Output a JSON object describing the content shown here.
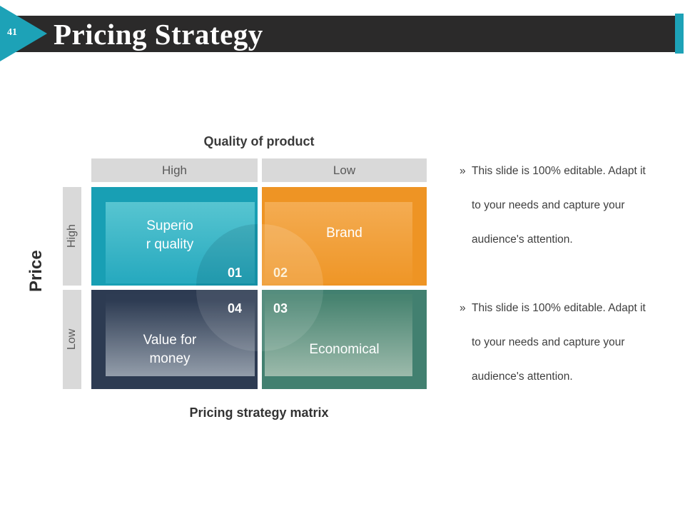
{
  "header": {
    "page_number": "41",
    "title": "Pricing Strategy"
  },
  "matrix": {
    "x_axis_title": "Quality of product",
    "y_axis_title": "Price",
    "caption": "Pricing strategy matrix",
    "column_headers": [
      "High",
      "Low"
    ],
    "row_headers": [
      "High",
      "Low"
    ],
    "quadrants": [
      {
        "number": "01",
        "label": "Superio\nr quality",
        "position": "top-left",
        "color": "#189fb4"
      },
      {
        "number": "02",
        "label": "Brand",
        "position": "top-right",
        "color": "#ee9424"
      },
      {
        "number": "03",
        "label": "Economical",
        "position": "bottom-right",
        "color": "#428070"
      },
      {
        "number": "04",
        "label": "Value for\nmoney",
        "position": "bottom-left",
        "color": "#2d3b52"
      }
    ]
  },
  "notes": [
    {
      "bullet": "»",
      "text": "This slide is 100% editable. Adapt it\nto your needs and capture your\naudience's attention."
    },
    {
      "bullet": "»",
      "text": "This slide is 100% editable. Adapt it\nto your needs and capture your\naudience's attention."
    }
  ],
  "colors": {
    "header_bar": "#2b2a2a",
    "accent_teal": "#1da2b7",
    "axis_header_gray": "#d9d9d9",
    "axis_text_gray": "#595959",
    "quad_teal": "#189fb4",
    "quad_orange": "#ee9424",
    "quad_navy": "#2d3b52",
    "quad_green": "#428070"
  }
}
